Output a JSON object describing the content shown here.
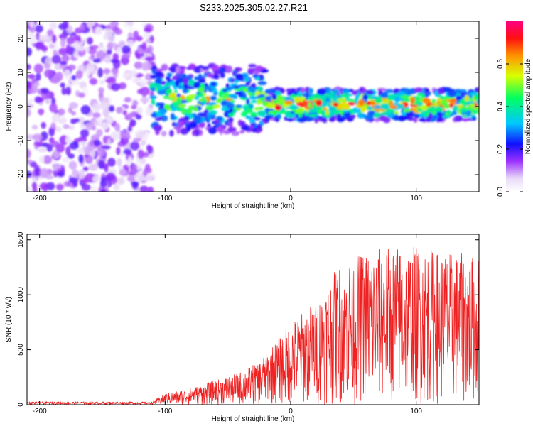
{
  "title": "S233.2025.305.02.27.R21",
  "chart_data": [
    {
      "type": "heatmap",
      "xlabel": "Height of straight line (km)",
      "ylabel": "Frequency (Hz)",
      "xlim": [
        -210,
        150
      ],
      "ylim": [
        -25,
        25
      ],
      "xticks": [
        -200,
        -100,
        0,
        100
      ],
      "yticks": [
        -20,
        -10,
        0,
        10,
        20
      ],
      "description_regions": [
        {
          "x_range": [
            -210,
            -110
          ],
          "freq_range": [
            -25,
            25
          ],
          "amplitude": 0.1
        },
        {
          "x_range": [
            -110,
            -20
          ],
          "freq_range": [
            -8,
            12
          ],
          "amplitude": 0.3
        },
        {
          "x_range": [
            -20,
            150
          ],
          "freq_range": [
            -4,
            5
          ],
          "amplitude": 0.4
        }
      ],
      "colorbar": {
        "label": "Normalized spectral amplitude",
        "min": 0.0,
        "max": 0.8,
        "ticks": [
          0.0,
          0.2,
          0.4,
          0.6
        ]
      }
    },
    {
      "type": "line",
      "xlabel": "Height of straight line (km)",
      "ylabel": "SNR (10 * v/v)",
      "xlim": [
        -210,
        150
      ],
      "ylim": [
        0,
        1550
      ],
      "xticks": [
        -200,
        -100,
        0,
        100
      ],
      "yticks": [
        0,
        500,
        1000,
        1500
      ],
      "color": "#ee2222",
      "envelope": [
        {
          "x": -210,
          "y": 30
        },
        {
          "x": -110,
          "y": 30
        },
        {
          "x": -100,
          "y": 100
        },
        {
          "x": -80,
          "y": 150
        },
        {
          "x": -60,
          "y": 220
        },
        {
          "x": -40,
          "y": 300
        },
        {
          "x": -25,
          "y": 400
        },
        {
          "x": -10,
          "y": 600
        },
        {
          "x": 0,
          "y": 750
        },
        {
          "x": 20,
          "y": 950
        },
        {
          "x": 40,
          "y": 1300
        },
        {
          "x": 60,
          "y": 1400
        },
        {
          "x": 80,
          "y": 1450
        },
        {
          "x": 100,
          "y": 1450
        },
        {
          "x": 120,
          "y": 1400
        },
        {
          "x": 150,
          "y": 1350
        }
      ]
    }
  ]
}
